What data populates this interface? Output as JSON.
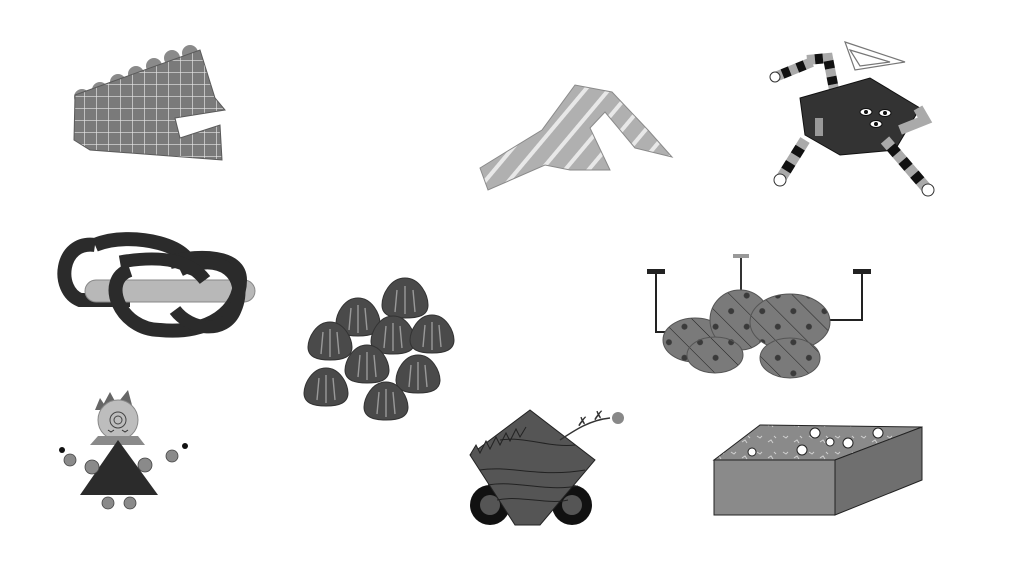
{
  "scene": {
    "background_color": "#ffffff",
    "palette": {
      "dark": "#3f3f3f",
      "mid": "#7a7a7a",
      "light": "#b8b8b8",
      "black": "#111111",
      "white": "#ffffff"
    },
    "objects": [
      {
        "name": "gridded-claw-shape"
      },
      {
        "name": "striped-zigzag-shape"
      },
      {
        "name": "robot-creature"
      },
      {
        "name": "interlocked-rings"
      },
      {
        "name": "egg-cluster"
      },
      {
        "name": "lamp-cloud-shape"
      },
      {
        "name": "swirl-doll-figure"
      },
      {
        "name": "wheeled-sawtooth-vehicle"
      },
      {
        "name": "speckled-box"
      }
    ]
  }
}
